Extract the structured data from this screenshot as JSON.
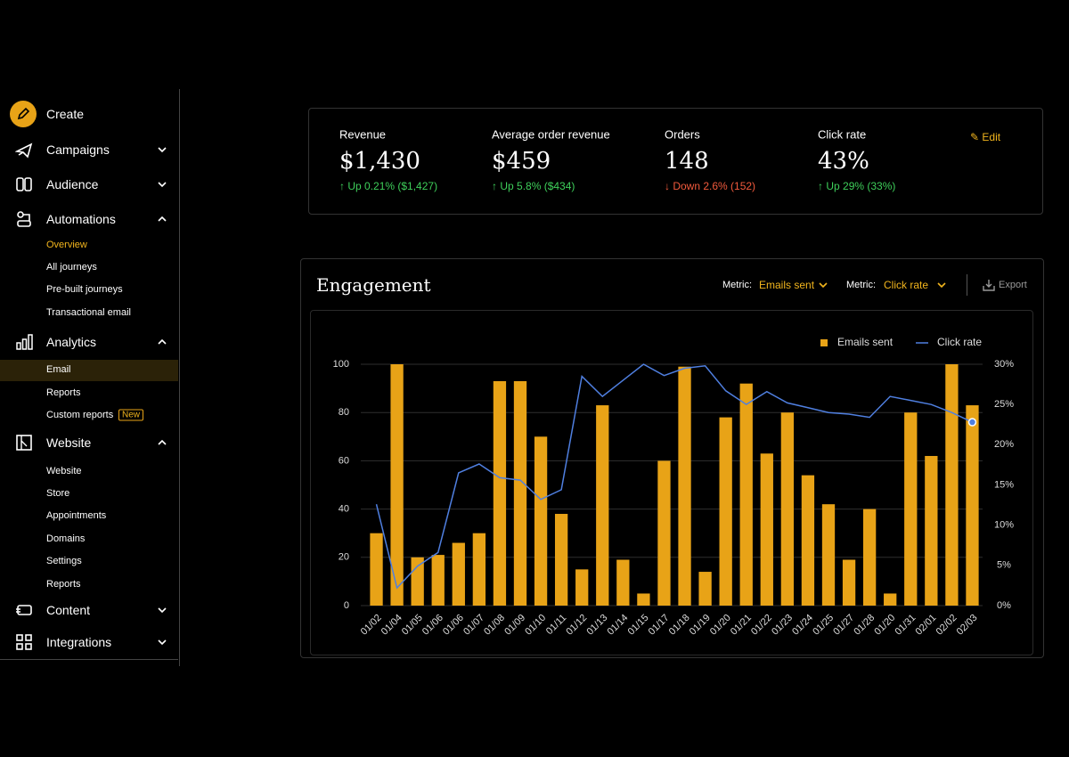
{
  "sidebar": {
    "create": "Create",
    "campaigns": "Campaigns",
    "audience": "Audience",
    "automations": {
      "label": "Automations",
      "items": [
        "Overview",
        "All journeys",
        "Pre-built journeys",
        "Transactional email"
      ]
    },
    "analytics": {
      "label": "Analytics",
      "items": [
        "Email",
        "Reports",
        "Custom reports"
      ],
      "badge": "New"
    },
    "website": {
      "label": "Website",
      "items": [
        "Website",
        "Store",
        "Appointments",
        "Domains",
        "Settings",
        "Reports"
      ]
    },
    "content": "Content",
    "integrations": "Integrations"
  },
  "kpis": {
    "edit": "Edit",
    "items": [
      {
        "label": "Revenue",
        "value": "$1,430",
        "delta": "Up 0.21% ($1,427)"
      },
      {
        "label": "Average order revenue",
        "value": "$459",
        "delta": "Up 5.8% ($434)"
      },
      {
        "label": "Orders",
        "value": "148",
        "delta": "Down 2.6% (152)"
      },
      {
        "label": "Click rate",
        "value": "43%",
        "delta": "Up 29% (33%)"
      }
    ]
  },
  "engagement": {
    "metric1_label": "Metric:",
    "metric1": "Emails sent",
    "metric2_label": "Metric:",
    "metric2": "Click rate",
    "export": "Export"
  },
  "chart_data": {
    "type": "bar-line",
    "title": "Engagement",
    "categories": [
      "01/02",
      "01/04",
      "01/05",
      "01/06",
      "01/06",
      "01/07",
      "01/08",
      "01/09",
      "01/10",
      "01/11",
      "01/12",
      "01/13",
      "01/14",
      "01/15",
      "01/17",
      "01/18",
      "01/19",
      "01/20",
      "01/21",
      "01/22",
      "01/23",
      "01/24",
      "01/25",
      "01/27",
      "01/28",
      "01/20",
      "01/31",
      "02/01",
      "02/02",
      "02/03"
    ],
    "series": [
      {
        "name": "Emails sent",
        "type": "bar",
        "color": "#e8a317",
        "values": [
          30,
          100,
          20,
          21,
          26,
          30,
          93,
          93,
          70,
          38,
          15,
          83,
          19,
          5,
          60,
          99,
          14,
          78,
          92,
          63,
          80,
          54,
          42,
          19,
          40,
          5,
          80,
          62,
          100,
          83
        ]
      },
      {
        "name": "Click rate",
        "type": "line",
        "axis": "y2",
        "color": "#4f7fe0",
        "values": [
          12.6,
          2.2,
          4.9,
          6.6,
          16.5,
          17.6,
          15.9,
          15.6,
          13.2,
          14.4,
          28.5,
          26,
          28,
          30,
          28.6,
          29.5,
          29.8,
          26.7,
          25,
          26.6,
          25.2,
          24.6,
          24,
          23.8,
          23.4,
          26,
          25.5,
          25,
          24,
          22.8
        ]
      }
    ],
    "ylim": [
      0,
      100
    ],
    "yticks": [
      0,
      20,
      40,
      60,
      80,
      100
    ],
    "y2lim": [
      0,
      30
    ],
    "y2ticks": [
      {
        "value": 0,
        "label": "0%"
      },
      {
        "value": 5,
        "label": "5%"
      },
      {
        "value": 10,
        "label": "10%"
      },
      {
        "value": 15,
        "label": "15%"
      },
      {
        "value": 20,
        "label": "20%"
      },
      {
        "value": 25,
        "label": "25%"
      },
      {
        "value": 30,
        "label": "30%"
      }
    ],
    "grid": true
  }
}
